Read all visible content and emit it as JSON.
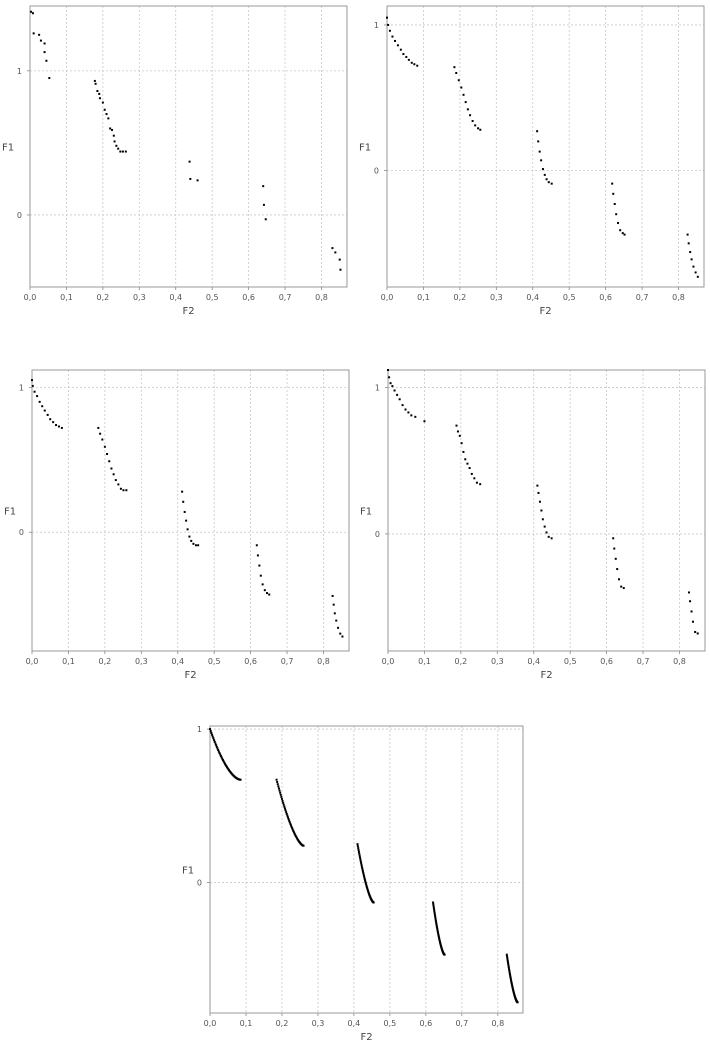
{
  "chart_data": [
    {
      "type": "scatter",
      "title": "",
      "xlabel": "F2",
      "ylabel": "F1",
      "xlim": [
        0.0,
        0.87
      ],
      "ylim": [
        -0.5,
        1.45
      ],
      "xticks": [
        "0,0",
        "0,1",
        "0,2",
        "0,3",
        "0,4",
        "0,5",
        "0,6",
        "0,7",
        "0,8"
      ],
      "xtick_values": [
        0,
        0.1,
        0.2,
        0.3,
        0.4,
        0.5,
        0.6,
        0.7,
        0.8
      ],
      "yticks": [
        "0",
        "1"
      ],
      "ytick_values": [
        0,
        1
      ],
      "grid": true,
      "points": [
        [
          0.003,
          1.41
        ],
        [
          0.008,
          1.4
        ],
        [
          0.01,
          1.26
        ],
        [
          0.025,
          1.25
        ],
        [
          0.03,
          1.21
        ],
        [
          0.04,
          1.19
        ],
        [
          0.04,
          1.13
        ],
        [
          0.045,
          1.07
        ],
        [
          0.053,
          0.95
        ],
        [
          0.178,
          0.93
        ],
        [
          0.18,
          0.91
        ],
        [
          0.185,
          0.86
        ],
        [
          0.19,
          0.84
        ],
        [
          0.192,
          0.81
        ],
        [
          0.2,
          0.78
        ],
        [
          0.205,
          0.73
        ],
        [
          0.21,
          0.7
        ],
        [
          0.215,
          0.67
        ],
        [
          0.22,
          0.6
        ],
        [
          0.225,
          0.59
        ],
        [
          0.23,
          0.55
        ],
        [
          0.232,
          0.51
        ],
        [
          0.237,
          0.48
        ],
        [
          0.242,
          0.46
        ],
        [
          0.248,
          0.44
        ],
        [
          0.255,
          0.44
        ],
        [
          0.263,
          0.44
        ],
        [
          0.438,
          0.37
        ],
        [
          0.44,
          0.25
        ],
        [
          0.46,
          0.24
        ],
        [
          0.64,
          0.2
        ],
        [
          0.642,
          0.07
        ],
        [
          0.647,
          -0.03
        ],
        [
          0.83,
          -0.23
        ],
        [
          0.838,
          -0.26
        ],
        [
          0.85,
          -0.31
        ],
        [
          0.852,
          -0.38
        ]
      ]
    },
    {
      "type": "scatter",
      "title": "",
      "xlabel": "F2",
      "ylabel": "F1",
      "xlim": [
        0.0,
        0.87
      ],
      "ylim": [
        -0.8,
        1.13
      ],
      "xticks": [
        "0,0",
        "0,1",
        "0,2",
        "0,3",
        "0,4",
        "0,5",
        "0,6",
        "0,7",
        "0,8"
      ],
      "xtick_values": [
        0,
        0.1,
        0.2,
        0.3,
        0.4,
        0.5,
        0.6,
        0.7,
        0.8
      ],
      "yticks": [
        "0",
        "1"
      ],
      "ytick_values": [
        0,
        1
      ],
      "grid": true,
      "points": [
        [
          0.0,
          1.05
        ],
        [
          0.003,
          1.0
        ],
        [
          0.008,
          0.96
        ],
        [
          0.015,
          0.92
        ],
        [
          0.022,
          0.89
        ],
        [
          0.03,
          0.86
        ],
        [
          0.038,
          0.83
        ],
        [
          0.045,
          0.8
        ],
        [
          0.053,
          0.78
        ],
        [
          0.06,
          0.76
        ],
        [
          0.068,
          0.74
        ],
        [
          0.075,
          0.73
        ],
        [
          0.083,
          0.72
        ],
        [
          0.185,
          0.71
        ],
        [
          0.19,
          0.67
        ],
        [
          0.197,
          0.62
        ],
        [
          0.204,
          0.57
        ],
        [
          0.21,
          0.52
        ],
        [
          0.216,
          0.47
        ],
        [
          0.222,
          0.42
        ],
        [
          0.228,
          0.38
        ],
        [
          0.235,
          0.34
        ],
        [
          0.242,
          0.31
        ],
        [
          0.25,
          0.29
        ],
        [
          0.256,
          0.28
        ],
        [
          0.412,
          0.27
        ],
        [
          0.415,
          0.2
        ],
        [
          0.419,
          0.13
        ],
        [
          0.423,
          0.07
        ],
        [
          0.428,
          0.01
        ],
        [
          0.433,
          -0.03
        ],
        [
          0.438,
          -0.06
        ],
        [
          0.444,
          -0.08
        ],
        [
          0.452,
          -0.09
        ],
        [
          0.618,
          -0.09
        ],
        [
          0.621,
          -0.16
        ],
        [
          0.625,
          -0.23
        ],
        [
          0.629,
          -0.3
        ],
        [
          0.634,
          -0.36
        ],
        [
          0.64,
          -0.41
        ],
        [
          0.647,
          -0.43
        ],
        [
          0.652,
          -0.44
        ],
        [
          0.825,
          -0.44
        ],
        [
          0.828,
          -0.5
        ],
        [
          0.832,
          -0.56
        ],
        [
          0.836,
          -0.61
        ],
        [
          0.841,
          -0.66
        ],
        [
          0.847,
          -0.7
        ],
        [
          0.853,
          -0.73
        ]
      ]
    },
    {
      "type": "scatter",
      "title": "",
      "xlabel": "F2",
      "ylabel": "F1",
      "xlim": [
        0.0,
        0.87
      ],
      "ylim": [
        -0.82,
        1.12
      ],
      "xticks": [
        "0,0",
        "0,1",
        "0,2",
        "0,3",
        "0,4",
        "0,5",
        "0,6",
        "0,7",
        "0,8"
      ],
      "xtick_values": [
        0,
        0.1,
        0.2,
        0.3,
        0.4,
        0.5,
        0.6,
        0.7,
        0.8
      ],
      "yticks": [
        "0",
        "1"
      ],
      "ytick_values": [
        0,
        1
      ],
      "grid": true,
      "points": [
        [
          0.0,
          1.05
        ],
        [
          0.002,
          1.01
        ],
        [
          0.007,
          0.97
        ],
        [
          0.014,
          0.94
        ],
        [
          0.021,
          0.9
        ],
        [
          0.028,
          0.87
        ],
        [
          0.035,
          0.84
        ],
        [
          0.043,
          0.81
        ],
        [
          0.05,
          0.78
        ],
        [
          0.058,
          0.76
        ],
        [
          0.066,
          0.74
        ],
        [
          0.074,
          0.73
        ],
        [
          0.082,
          0.72
        ],
        [
          0.182,
          0.72
        ],
        [
          0.187,
          0.68
        ],
        [
          0.193,
          0.64
        ],
        [
          0.2,
          0.59
        ],
        [
          0.206,
          0.54
        ],
        [
          0.212,
          0.49
        ],
        [
          0.218,
          0.44
        ],
        [
          0.224,
          0.4
        ],
        [
          0.23,
          0.36
        ],
        [
          0.237,
          0.33
        ],
        [
          0.244,
          0.3
        ],
        [
          0.251,
          0.29
        ],
        [
          0.259,
          0.29
        ],
        [
          0.412,
          0.28
        ],
        [
          0.415,
          0.21
        ],
        [
          0.419,
          0.14
        ],
        [
          0.423,
          0.08
        ],
        [
          0.427,
          0.02
        ],
        [
          0.432,
          -0.03
        ],
        [
          0.437,
          -0.06
        ],
        [
          0.443,
          -0.08
        ],
        [
          0.45,
          -0.09
        ],
        [
          0.456,
          -0.09
        ],
        [
          0.617,
          -0.09
        ],
        [
          0.62,
          -0.16
        ],
        [
          0.624,
          -0.23
        ],
        [
          0.628,
          -0.3
        ],
        [
          0.633,
          -0.36
        ],
        [
          0.639,
          -0.4
        ],
        [
          0.645,
          -0.42
        ],
        [
          0.651,
          -0.43
        ],
        [
          0.825,
          -0.44
        ],
        [
          0.828,
          -0.5
        ],
        [
          0.831,
          -0.56
        ],
        [
          0.835,
          -0.61
        ],
        [
          0.84,
          -0.66
        ],
        [
          0.846,
          -0.7
        ],
        [
          0.852,
          -0.72
        ]
      ]
    },
    {
      "type": "scatter",
      "title": "",
      "xlabel": "F2",
      "ylabel": "F1",
      "xlim": [
        0.0,
        0.87
      ],
      "ylim": [
        -0.8,
        1.12
      ],
      "xticks": [
        "0,0",
        "0,1",
        "0,2",
        "0,3",
        "0,4",
        "0,5",
        "0,6",
        "0,7",
        "0,8"
      ],
      "xtick_values": [
        0,
        0.1,
        0.2,
        0.3,
        0.4,
        0.5,
        0.6,
        0.7,
        0.8
      ],
      "yticks": [
        "0",
        "1"
      ],
      "ytick_values": [
        0,
        1
      ],
      "grid": true,
      "points": [
        [
          0.0,
          1.12
        ],
        [
          0.003,
          1.07
        ],
        [
          0.007,
          1.03
        ],
        [
          0.012,
          1.01
        ],
        [
          0.018,
          0.98
        ],
        [
          0.025,
          0.95
        ],
        [
          0.032,
          0.92
        ],
        [
          0.04,
          0.88
        ],
        [
          0.048,
          0.85
        ],
        [
          0.056,
          0.83
        ],
        [
          0.064,
          0.81
        ],
        [
          0.075,
          0.8
        ],
        [
          0.1,
          0.77
        ],
        [
          0.188,
          0.74
        ],
        [
          0.192,
          0.7
        ],
        [
          0.197,
          0.67
        ],
        [
          0.202,
          0.62
        ],
        [
          0.207,
          0.56
        ],
        [
          0.212,
          0.51
        ],
        [
          0.218,
          0.48
        ],
        [
          0.224,
          0.45
        ],
        [
          0.23,
          0.41
        ],
        [
          0.237,
          0.38
        ],
        [
          0.244,
          0.35
        ],
        [
          0.253,
          0.34
        ],
        [
          0.41,
          0.33
        ],
        [
          0.413,
          0.28
        ],
        [
          0.417,
          0.22
        ],
        [
          0.421,
          0.16
        ],
        [
          0.425,
          0.1
        ],
        [
          0.43,
          0.05
        ],
        [
          0.435,
          0.01
        ],
        [
          0.441,
          -0.02
        ],
        [
          0.449,
          -0.03
        ],
        [
          0.618,
          -0.03
        ],
        [
          0.621,
          -0.1
        ],
        [
          0.625,
          -0.17
        ],
        [
          0.629,
          -0.24
        ],
        [
          0.634,
          -0.31
        ],
        [
          0.64,
          -0.36
        ],
        [
          0.647,
          -0.37
        ],
        [
          0.826,
          -0.4
        ],
        [
          0.829,
          -0.46
        ],
        [
          0.833,
          -0.53
        ],
        [
          0.837,
          -0.6
        ],
        [
          0.843,
          -0.67
        ],
        [
          0.85,
          -0.68
        ]
      ]
    },
    {
      "type": "scatter",
      "title": "",
      "xlabel": "F2",
      "ylabel": "F1",
      "xlim": [
        0.0,
        0.87
      ],
      "ylim": [
        -0.85,
        1.02
      ],
      "xticks": [
        "0,0",
        "0,1",
        "0,2",
        "0,3",
        "0,4",
        "0,5",
        "0,6",
        "0,7",
        "0,8"
      ],
      "xtick_values": [
        0,
        0.1,
        0.2,
        0.3,
        0.4,
        0.5,
        0.6,
        0.7,
        0.8
      ],
      "yticks": [
        "0",
        "1"
      ],
      "ytick_values": [
        0,
        1
      ],
      "grid": true,
      "curves": [
        {
          "x0": 0.0,
          "x1": 0.085,
          "y0": 1.0,
          "y1": 0.67,
          "shape": 1.2
        },
        {
          "x0": 0.185,
          "x1": 0.26,
          "y0": 0.67,
          "y1": 0.24,
          "shape": 0.9
        },
        {
          "x0": 0.41,
          "x1": 0.455,
          "y0": 0.25,
          "y1": -0.13,
          "shape": 0.9
        },
        {
          "x0": 0.62,
          "x1": 0.652,
          "y0": -0.13,
          "y1": -0.47,
          "shape": 0.9
        },
        {
          "x0": 0.825,
          "x1": 0.855,
          "y0": -0.47,
          "y1": -0.78,
          "shape": 0.9
        }
      ]
    }
  ]
}
